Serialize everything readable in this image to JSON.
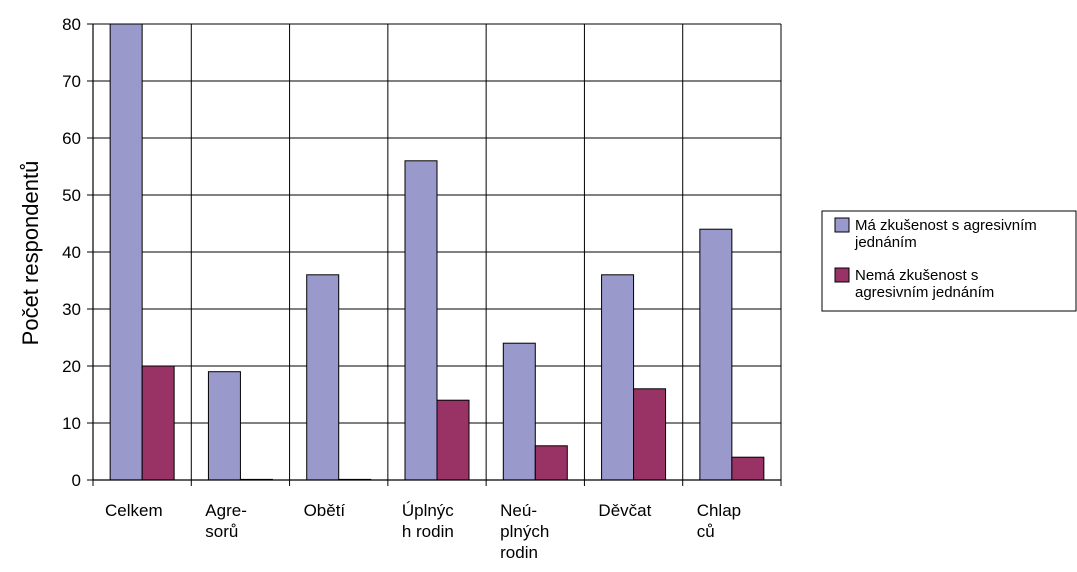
{
  "chart_data": {
    "type": "bar",
    "categories": [
      [
        "Celkem"
      ],
      [
        "Agre-",
        "sorů"
      ],
      [
        "Obětí"
      ],
      [
        "Úplnýc",
        "h rodin"
      ],
      [
        "Neú-",
        "plných",
        "rodin"
      ],
      [
        "Děvčat"
      ],
      [
        "Chlap",
        "ců"
      ]
    ],
    "series": [
      {
        "name": [
          "Má zkušenost s agresivním",
          "jednáním"
        ],
        "color": "#9999cc",
        "values": [
          80,
          19,
          36,
          56,
          24,
          36,
          44
        ]
      },
      {
        "name": [
          "Nemá zkušenost s",
          "agresivním jednáním"
        ],
        "color": "#993366",
        "values": [
          20,
          0,
          0,
          14,
          6,
          16,
          4
        ]
      }
    ],
    "ylabel": "Počet respondentů",
    "ylim": [
      0,
      80
    ],
    "yticks": [
      "0",
      "10",
      "20",
      "30",
      "40",
      "50",
      "60",
      "70",
      "80"
    ],
    "grid": true,
    "legend_position": "right"
  }
}
